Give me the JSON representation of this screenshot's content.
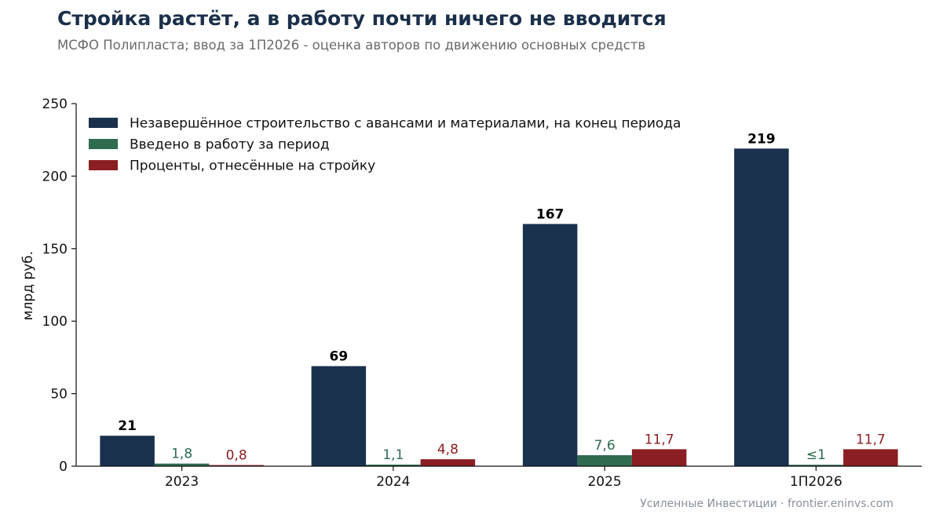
{
  "header": {
    "title": "Стройка растёт, а в работу почти ничего не вводится",
    "subtitle": "МСФО Полипласта; ввод за 1П2026 - оценка авторов по движению основных средств"
  },
  "footer": {
    "source": "Усиленные Инвестиции · frontier.eninvs.com"
  },
  "chart_data": {
    "type": "bar",
    "title": "Стройка растёт, а в работу почти ничего не вводится",
    "subtitle": "МСФО Полипласта; ввод за 1П2026 - оценка авторов по движению основных средств",
    "xlabel": "",
    "ylabel": "млрд руб.",
    "ylim": [
      0,
      250
    ],
    "yticks": [
      0,
      50,
      100,
      150,
      200,
      250
    ],
    "categories": [
      "2023",
      "2024",
      "2025",
      "1П2026"
    ],
    "grid": false,
    "legend_position": "top-left",
    "series": [
      {
        "name": "Незавершённое строительство с авансами и материалами, на конец периода",
        "values": [
          21,
          69,
          167,
          219
        ],
        "labels": [
          "21",
          "69",
          "167",
          "219"
        ],
        "color": "#1a314d",
        "label_color": "#000000",
        "label_bold": true
      },
      {
        "name": "Введено в работу за период",
        "values": [
          1.8,
          1.1,
          7.6,
          1
        ],
        "labels": [
          "1,8",
          "1,1",
          "7,6",
          "≤1"
        ],
        "color": "#2e6b4f",
        "label_color": "#2e6b4f",
        "label_bold": false
      },
      {
        "name": "Проценты, отнесённые на стройку",
        "values": [
          0.8,
          4.8,
          11.7,
          11.7
        ],
        "labels": [
          "0,8",
          "4,8",
          "11,7",
          "11,7"
        ],
        "color": "#8b1e22",
        "label_color": "#8b1e22",
        "label_bold": false
      }
    ]
  }
}
